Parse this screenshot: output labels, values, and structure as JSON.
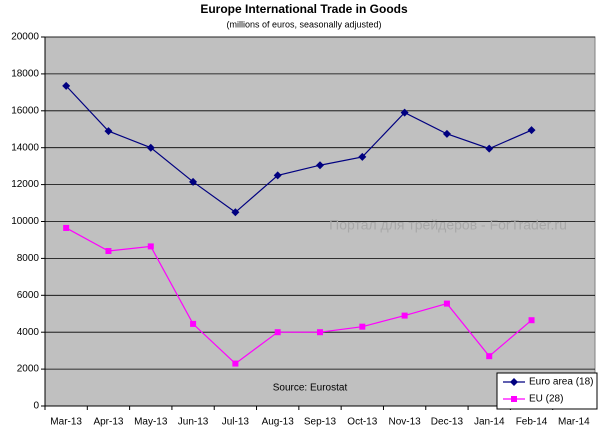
{
  "chart_data": {
    "type": "line",
    "title": "Europe International Trade in Goods",
    "subtitle": "(millions of euros, seasonally adjusted)",
    "annotations": [
      "Source: Eurostat",
      "Портал для трейдеров - ForTrader.ru"
    ],
    "categories": [
      "Mar-13",
      "Apr-13",
      "May-13",
      "Jun-13",
      "Jul-13",
      "Aug-13",
      "Sep-13",
      "Oct-13",
      "Nov-13",
      "Dec-13",
      "Jan-14",
      "Feb-14",
      "Mar-14"
    ],
    "series": [
      {
        "name": "Euro area (18)",
        "color": "#000080",
        "marker": "diamond",
        "values": [
          17350,
          14900,
          14000,
          12150,
          10500,
          12500,
          13050,
          13500,
          15900,
          14750,
          13950,
          14950,
          null
        ]
      },
      {
        "name": "EU (28)",
        "color": "#ff00ff",
        "marker": "square",
        "values": [
          9650,
          8400,
          8650,
          4450,
          2300,
          4000,
          4000,
          4300,
          4900,
          5550,
          2700,
          4650,
          null
        ]
      }
    ],
    "ylim": [
      0,
      20000
    ],
    "yticks": [
      0,
      2000,
      4000,
      6000,
      8000,
      10000,
      12000,
      14000,
      16000,
      18000,
      20000
    ],
    "grid": true,
    "legend": "lower right",
    "plot_background": "#c0c0c0"
  }
}
